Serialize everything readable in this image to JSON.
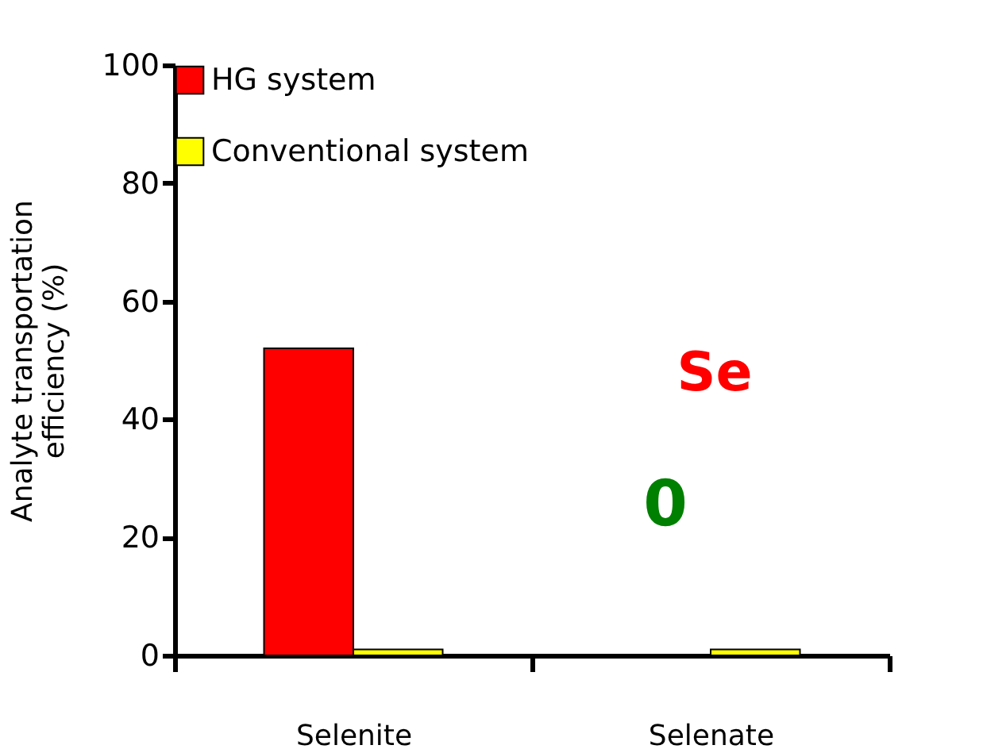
{
  "chart_data": {
    "type": "bar",
    "ylabel": "Analyte transportation efficiency (%)",
    "categories": [
      "Selenite",
      "Selenate"
    ],
    "series": [
      {
        "name": "HG system",
        "color": "#ff0000",
        "values": [
          52,
          0
        ]
      },
      {
        "name": "Conventional system",
        "color": "#ffff00",
        "values": [
          1,
          1
        ]
      }
    ],
    "ylim": [
      0,
      100
    ],
    "yticks": [
      0,
      20,
      40,
      60,
      80,
      100
    ],
    "grid": false,
    "legend": "top left",
    "annotations": [
      "Se",
      "0"
    ]
  }
}
